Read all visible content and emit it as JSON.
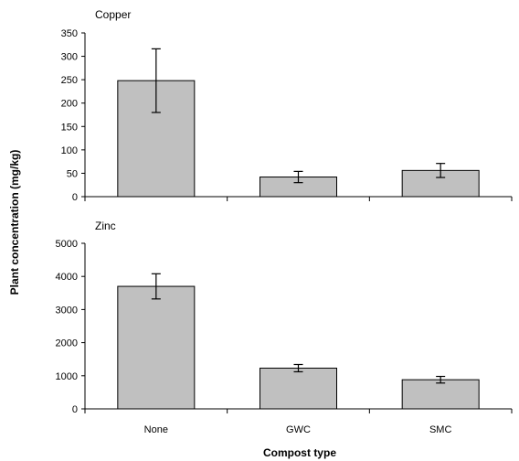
{
  "chart_data": {
    "type": "bar",
    "xlabel": "Compost type",
    "ylabel": "Plant concentration (mg/kg)",
    "categories": [
      "None",
      "GWC",
      "SMC"
    ],
    "bar_color": "#c0c0c0",
    "error_bars": true,
    "grid": false,
    "panels": [
      {
        "title": "Copper",
        "values": [
          248,
          42,
          56
        ],
        "errors": [
          68,
          12,
          15
        ],
        "ylim": [
          0,
          350
        ],
        "yticks": [
          0,
          50,
          100,
          150,
          200,
          250,
          300,
          350
        ]
      },
      {
        "title": "Zinc",
        "values": [
          3700,
          1230,
          880
        ],
        "errors": [
          380,
          110,
          100
        ],
        "ylim": [
          0,
          5000
        ],
        "yticks": [
          0,
          1000,
          2000,
          3000,
          4000,
          5000
        ]
      }
    ]
  }
}
